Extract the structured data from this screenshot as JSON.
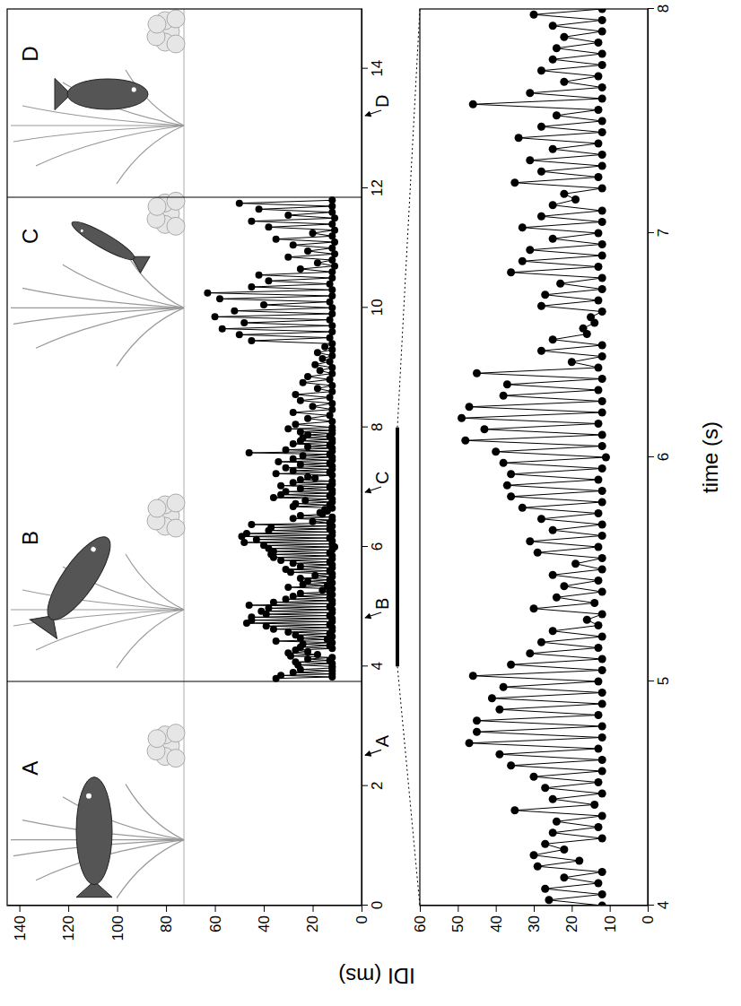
{
  "chart_data": [
    {
      "type": "line",
      "ylabel": "IDI (ms)",
      "xlim": [
        0,
        15
      ],
      "xticks": [
        0,
        2,
        4,
        6,
        8,
        10,
        12,
        14
      ],
      "ylim": [
        0,
        145
      ],
      "yticks": [
        0,
        20,
        40,
        60,
        80,
        100,
        120,
        140
      ],
      "grid": false,
      "boundaries": [
        3.75,
        11.85
      ],
      "scene_labels": [
        {
          "text": "A",
          "x": 2.3
        },
        {
          "text": "B",
          "x": 6.15
        },
        {
          "text": "C",
          "x": 11.2
        },
        {
          "text": "D",
          "x": 14.25
        }
      ],
      "annotations": [
        {
          "text": "A",
          "x": 2.5
        },
        {
          "text": "B",
          "x": 4.8
        },
        {
          "text": "C",
          "x": 6.9
        },
        {
          "text": "D",
          "x": 13.2
        }
      ],
      "x": [
        3.8,
        3.825,
        3.85,
        3.875,
        3.9,
        3.925,
        3.95,
        3.975,
        4,
        4.025,
        4.05,
        4.075,
        4.1,
        4.125,
        4.15,
        4.175,
        4.2,
        4.225,
        4.25,
        4.275,
        4.3,
        4.325,
        4.35,
        4.375,
        4.4,
        4.425,
        4.45,
        4.475,
        4.5,
        4.525,
        4.55,
        4.575,
        4.6,
        4.625,
        4.65,
        4.675,
        4.7,
        4.725,
        4.75,
        4.775,
        4.8,
        4.825,
        4.85,
        4.875,
        4.9,
        4.925,
        4.95,
        4.975,
        5,
        5.025,
        5.05,
        5.075,
        5.1,
        5.125,
        5.15,
        5.175,
        5.2,
        5.225,
        5.25,
        5.275,
        5.3,
        5.325,
        5.35,
        5.375,
        5.4,
        5.425,
        5.45,
        5.475,
        5.5,
        5.525,
        5.55,
        5.575,
        5.6,
        5.625,
        5.65,
        5.675,
        5.7,
        5.725,
        5.75,
        5.775,
        5.8,
        5.825,
        5.85,
        5.875,
        5.9,
        5.925,
        5.95,
        5.975,
        6,
        6.025,
        6.05,
        6.075,
        6.1,
        6.125,
        6.15,
        6.175,
        6.2,
        6.225,
        6.25,
        6.275,
        6.3,
        6.325,
        6.35,
        6.375,
        6.4,
        6.425,
        6.45,
        6.475,
        6.5,
        6.525,
        6.55,
        6.575,
        6.6,
        6.625,
        6.65,
        6.675,
        6.7,
        6.725,
        6.75,
        6.775,
        6.8,
        6.825,
        6.85,
        6.875,
        6.9,
        6.925,
        6.95,
        6.975,
        7,
        7.025,
        7.05,
        7.075,
        7.1,
        7.125,
        7.15,
        7.175,
        7.2,
        7.225,
        7.25,
        7.275,
        7.3,
        7.325,
        7.35,
        7.375,
        7.4,
        7.425,
        7.45,
        7.475,
        7.5,
        7.525,
        7.55,
        7.575,
        7.6,
        7.625,
        7.65,
        7.675,
        7.7,
        7.725,
        7.75,
        7.775,
        7.8,
        7.825,
        7.85,
        7.875,
        7.9,
        7.925,
        7.95,
        7.975,
        8,
        8.05,
        8.1,
        8.15,
        8.2,
        8.25,
        8.3,
        8.35,
        8.4,
        8.45,
        8.5,
        8.55,
        8.6,
        8.65,
        8.7,
        8.75,
        8.8,
        8.85,
        8.9,
        8.95,
        9,
        9.05,
        9.1,
        9.15,
        9.2,
        9.25,
        9.3,
        9.35,
        9.4,
        9.45,
        9.5,
        9.55,
        9.6,
        9.65,
        9.7,
        9.75,
        9.8,
        9.85,
        9.9,
        9.95,
        10,
        10.05,
        10.1,
        10.15,
        10.2,
        10.25,
        10.3,
        10.35,
        10.4,
        10.45,
        10.5,
        10.55,
        10.6,
        10.65,
        10.7,
        10.75,
        10.8,
        10.85,
        10.9,
        10.95,
        11,
        11.05,
        11.1,
        11.15,
        11.2,
        11.25,
        11.3,
        11.35,
        11.4,
        11.45,
        11.5,
        11.55,
        11.6,
        11.65,
        11.7,
        11.75,
        11.8
      ],
      "series": [
        {
          "color": "#000000",
          "marker": "circle",
          "line_style": "solid",
          "values": [
            35,
            12,
            33,
            12,
            28,
            12,
            25,
            12,
            12,
            26,
            12,
            27,
            13,
            22,
            12,
            29,
            18,
            30,
            22,
            27,
            12,
            25,
            13,
            24,
            12,
            35,
            14,
            25,
            12,
            27,
            13,
            30,
            12,
            36,
            12,
            39,
            13,
            47,
            12,
            45,
            12,
            45,
            13,
            39,
            12,
            41,
            12,
            38,
            13,
            46,
            12,
            36,
            12,
            31,
            13,
            28,
            12,
            25,
            13,
            16,
            12,
            30,
            14,
            24,
            12,
            22,
            13,
            25,
            12,
            19,
            12,
            29,
            13,
            31,
            12,
            25,
            12,
            28,
            13,
            33,
            12,
            36,
            12,
            37,
            13,
            36,
            12,
            38,
            11,
            40,
            12,
            48,
            12,
            43,
            13,
            49,
            12,
            47,
            12,
            38,
            13,
            37,
            12,
            45,
            13,
            20,
            12,
            28,
            12,
            25,
            16,
            17,
            14,
            15,
            12,
            28,
            13,
            27,
            12,
            23,
            12,
            36,
            13,
            33,
            12,
            31,
            12,
            25,
            13,
            33,
            12,
            28,
            12,
            25,
            19,
            22,
            12,
            35,
            13,
            28,
            12,
            31,
            12,
            25,
            13,
            34,
            12,
            28,
            12,
            24,
            13,
            46,
            12,
            31,
            12,
            22,
            13,
            28,
            12,
            25,
            12,
            24,
            13,
            22,
            12,
            25,
            12,
            30,
            12,
            27,
            12,
            22,
            13,
            28,
            12,
            20,
            12,
            25,
            13,
            27,
            12,
            18,
            12,
            24,
            13,
            22,
            12,
            17,
            12,
            19,
            13,
            16,
            12,
            18,
            12,
            15,
            12,
            45,
            13,
            50,
            12,
            57,
            12,
            48,
            13,
            60,
            12,
            52,
            12,
            40,
            13,
            58,
            12,
            63,
            12,
            45,
            13,
            38,
            12,
            42,
            12,
            25,
            11,
            18,
            12,
            30,
            11,
            22,
            12,
            28,
            11,
            35,
            12,
            20,
            11,
            38,
            12,
            45,
            11,
            30,
            12,
            42,
            12,
            50,
            12
          ]
        }
      ]
    },
    {
      "type": "line",
      "xlabel": "time (s)",
      "xlim": [
        4,
        8
      ],
      "xticks": [
        4,
        5,
        6,
        7,
        8
      ],
      "ylim": [
        0,
        60
      ],
      "yticks": [
        0,
        10,
        20,
        30,
        40,
        50,
        60
      ],
      "grid": false,
      "x": [
        4,
        4.025,
        4.05,
        4.075,
        4.1,
        4.125,
        4.15,
        4.175,
        4.2,
        4.225,
        4.25,
        4.275,
        4.3,
        4.325,
        4.35,
        4.375,
        4.4,
        4.425,
        4.45,
        4.475,
        4.5,
        4.525,
        4.55,
        4.575,
        4.6,
        4.625,
        4.65,
        4.675,
        4.7,
        4.725,
        4.75,
        4.775,
        4.8,
        4.825,
        4.85,
        4.875,
        4.9,
        4.925,
        4.95,
        4.975,
        5,
        5.025,
        5.05,
        5.075,
        5.1,
        5.125,
        5.15,
        5.175,
        5.2,
        5.225,
        5.25,
        5.275,
        5.3,
        5.325,
        5.35,
        5.375,
        5.4,
        5.425,
        5.45,
        5.475,
        5.5,
        5.525,
        5.55,
        5.575,
        5.6,
        5.625,
        5.65,
        5.675,
        5.7,
        5.725,
        5.75,
        5.775,
        5.8,
        5.825,
        5.85,
        5.875,
        5.9,
        5.925,
        5.95,
        5.975,
        6,
        6.025,
        6.05,
        6.075,
        6.1,
        6.125,
        6.15,
        6.175,
        6.2,
        6.225,
        6.25,
        6.275,
        6.3,
        6.325,
        6.35,
        6.375,
        6.4,
        6.425,
        6.45,
        6.475,
        6.5,
        6.525,
        6.55,
        6.575,
        6.6,
        6.625,
        6.65,
        6.675,
        6.7,
        6.725,
        6.75,
        6.775,
        6.8,
        6.825,
        6.85,
        6.875,
        6.9,
        6.925,
        6.95,
        6.975,
        7,
        7.025,
        7.05,
        7.075,
        7.1,
        7.125,
        7.15,
        7.175,
        7.2,
        7.225,
        7.25,
        7.275,
        7.3,
        7.325,
        7.35,
        7.375,
        7.4,
        7.425,
        7.45,
        7.475,
        7.5,
        7.525,
        7.55,
        7.575,
        7.6,
        7.625,
        7.65,
        7.675,
        7.7,
        7.725,
        7.75,
        7.775,
        7.8,
        7.825,
        7.85,
        7.875,
        7.9,
        7.925,
        7.95,
        7.975,
        8
      ],
      "series": [
        {
          "color": "#000000",
          "marker": "circle",
          "line_style": "solid",
          "values": [
            12,
            26,
            12,
            27,
            13,
            22,
            12,
            29,
            18,
            30,
            22,
            27,
            12,
            25,
            13,
            24,
            12,
            35,
            14,
            25,
            12,
            27,
            13,
            30,
            12,
            36,
            12,
            39,
            13,
            47,
            12,
            45,
            12,
            45,
            13,
            39,
            12,
            41,
            12,
            38,
            13,
            46,
            12,
            36,
            12,
            31,
            13,
            28,
            12,
            25,
            13,
            16,
            12,
            30,
            14,
            24,
            12,
            22,
            13,
            25,
            12,
            19,
            12,
            29,
            13,
            31,
            12,
            25,
            12,
            28,
            13,
            33,
            12,
            36,
            12,
            37,
            13,
            36,
            12,
            38,
            11,
            40,
            12,
            48,
            12,
            43,
            13,
            49,
            12,
            47,
            12,
            38,
            13,
            37,
            12,
            45,
            13,
            20,
            12,
            28,
            12,
            25,
            16,
            17,
            14,
            15,
            12,
            28,
            13,
            27,
            12,
            23,
            12,
            36,
            13,
            33,
            12,
            31,
            12,
            25,
            13,
            33,
            12,
            28,
            12,
            25,
            19,
            22,
            12,
            35,
            13,
            28,
            12,
            31,
            12,
            25,
            13,
            34,
            12,
            28,
            12,
            24,
            13,
            46,
            12,
            31,
            12,
            22,
            13,
            28,
            12,
            25,
            12,
            24,
            13,
            22,
            12,
            25,
            12,
            30,
            12
          ]
        }
      ]
    }
  ]
}
